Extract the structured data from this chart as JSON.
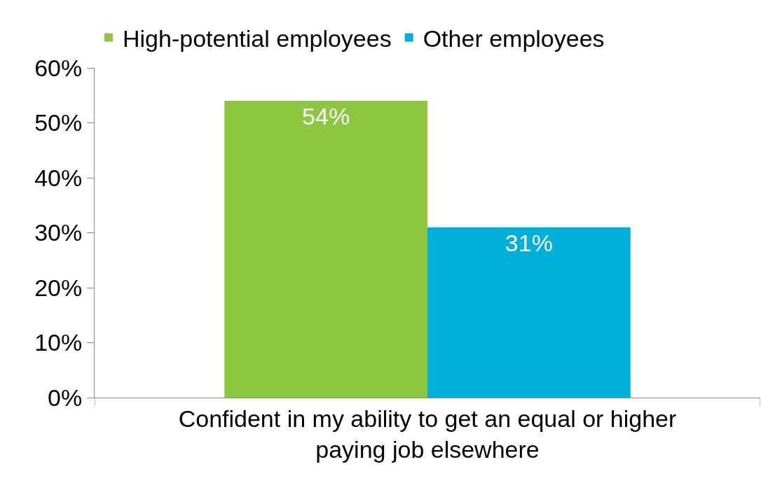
{
  "chart_data": {
    "type": "bar",
    "categories": [
      "Confident in my ability to get an equal or higher paying job elsewhere"
    ],
    "series": [
      {
        "name": "High-potential employees",
        "color": "#8dc63f",
        "values": [
          54
        ],
        "value_labels": [
          "54%"
        ]
      },
      {
        "name": "Other employees",
        "color": "#00b0d8",
        "values": [
          31
        ],
        "value_labels": [
          "31%"
        ]
      }
    ],
    "ylim": [
      0,
      60
    ],
    "yticks": [
      {
        "value": 0,
        "label": "0%"
      },
      {
        "value": 10,
        "label": "10%"
      },
      {
        "value": 20,
        "label": "20%"
      },
      {
        "value": 30,
        "label": "30%"
      },
      {
        "value": 40,
        "label": "40%"
      },
      {
        "value": 50,
        "label": "50%"
      },
      {
        "value": 60,
        "label": "60%"
      }
    ],
    "grid": false,
    "legend": "top"
  }
}
